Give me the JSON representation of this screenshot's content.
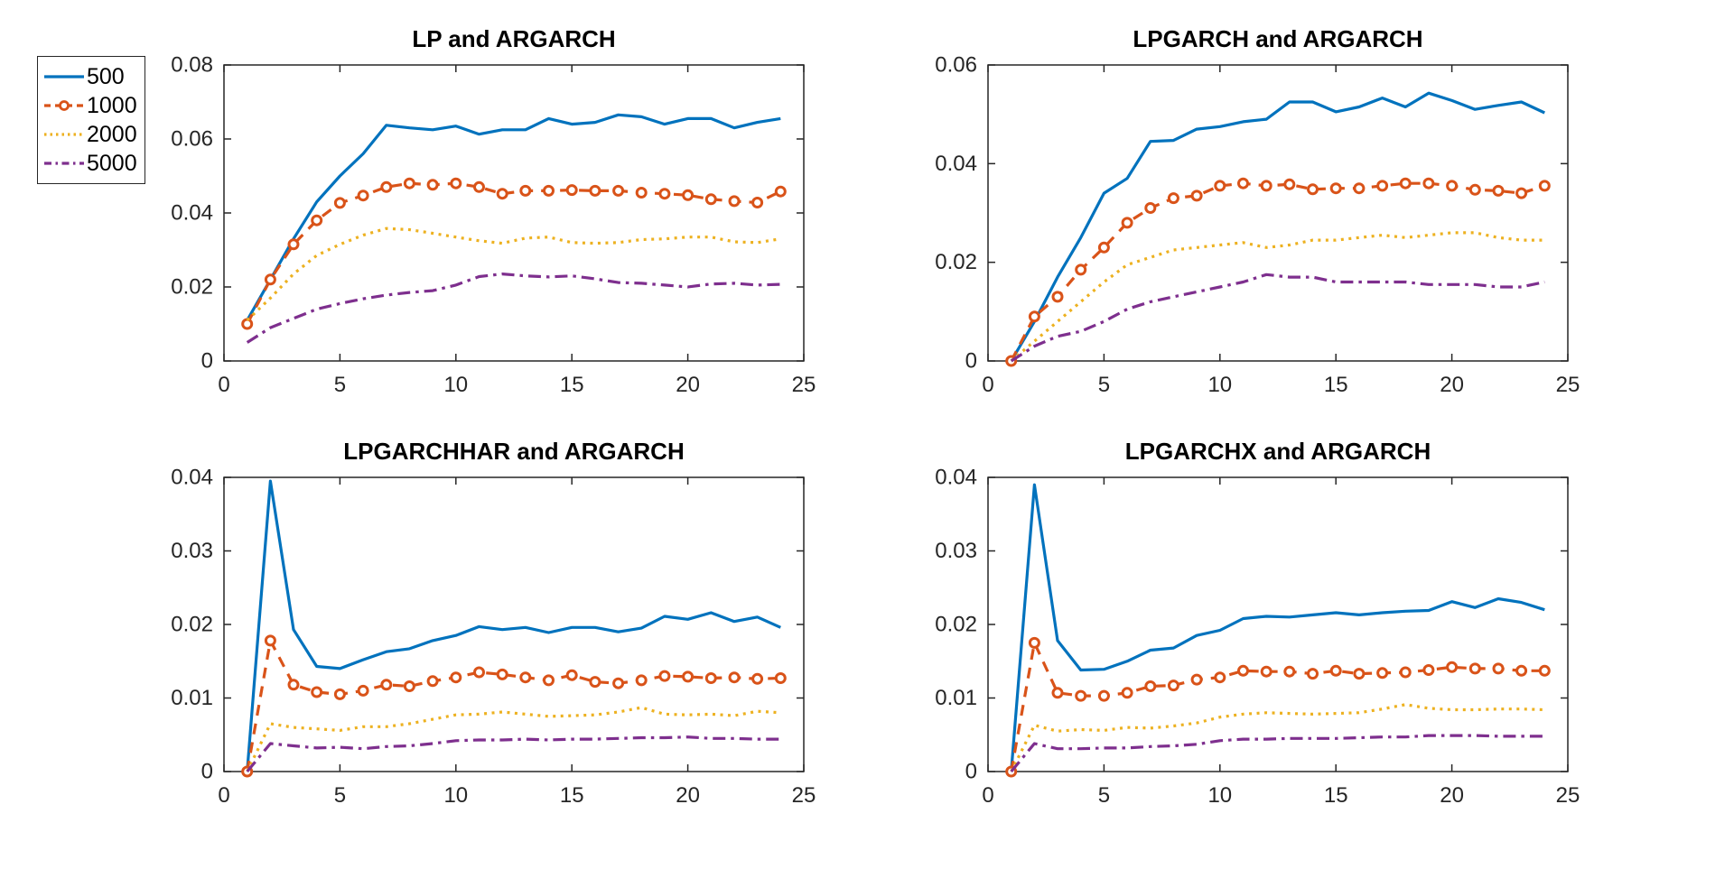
{
  "style": {
    "background": "#FFFFFF",
    "axis_color": "#262626",
    "title_color": "#000000",
    "series_colors": {
      "blue": "#0072BD",
      "orange": "#D95319",
      "yellow": "#EDB120",
      "purple": "#7E2F8E"
    }
  },
  "legend": {
    "position": "outside-top-left",
    "items": [
      {
        "label": "500",
        "color": "#0072BD",
        "line_style": "solid",
        "marker": "none"
      },
      {
        "label": "1000",
        "color": "#D95319",
        "line_style": "dashed",
        "marker": "circle"
      },
      {
        "label": "2000",
        "color": "#EDB120",
        "line_style": "dotted",
        "marker": "none"
      },
      {
        "label": "5000",
        "color": "#7E2F8E",
        "line_style": "dashdot",
        "marker": "none"
      }
    ]
  },
  "chart_data": [
    {
      "type": "line",
      "title": "LP and ARGARCH",
      "xlim": [
        0,
        25
      ],
      "ylim": [
        0,
        0.08
      ],
      "xticks": [
        "0",
        "5",
        "10",
        "15",
        "20",
        "25"
      ],
      "yticks": [
        "0",
        "0.02",
        "0.04",
        "0.06",
        "0.08"
      ],
      "grid": false,
      "x": [
        1,
        2,
        3,
        4,
        5,
        6,
        7,
        8,
        9,
        10,
        11,
        12,
        13,
        14,
        15,
        16,
        17,
        18,
        19,
        20,
        21,
        22,
        23,
        24
      ],
      "series": [
        {
          "name": "500",
          "color": "#0072BD",
          "line_style": "solid",
          "marker": "none",
          "values": [
            0.011,
            0.022,
            0.033,
            0.043,
            0.05,
            0.056,
            0.0637,
            0.063,
            0.0625,
            0.0635,
            0.0613,
            0.0625,
            0.0625,
            0.0655,
            0.064,
            0.0645,
            0.0665,
            0.066,
            0.064,
            0.0655,
            0.0655,
            0.063,
            0.0645,
            0.0655
          ]
        },
        {
          "name": "1000",
          "color": "#D95319",
          "line_style": "dashed",
          "marker": "circle",
          "values": [
            0.01,
            0.022,
            0.0315,
            0.038,
            0.0427,
            0.0447,
            0.047,
            0.048,
            0.0476,
            0.048,
            0.047,
            0.0452,
            0.046,
            0.046,
            0.0462,
            0.046,
            0.046,
            0.0455,
            0.0452,
            0.0448,
            0.0437,
            0.0432,
            0.0428,
            0.0458
          ]
        },
        {
          "name": "2000",
          "color": "#EDB120",
          "line_style": "dotted",
          "marker": "none",
          "values": [
            0.011,
            0.017,
            0.0235,
            0.0285,
            0.0315,
            0.034,
            0.0358,
            0.0355,
            0.0345,
            0.0335,
            0.0325,
            0.0318,
            0.0332,
            0.0335,
            0.032,
            0.0318,
            0.032,
            0.0328,
            0.033,
            0.0335,
            0.0335,
            0.0322,
            0.032,
            0.033
          ]
        },
        {
          "name": "5000",
          "color": "#7E2F8E",
          "line_style": "dashdot",
          "marker": "none",
          "values": [
            0.005,
            0.009,
            0.0115,
            0.014,
            0.0155,
            0.0168,
            0.0178,
            0.0185,
            0.019,
            0.0205,
            0.0228,
            0.0235,
            0.023,
            0.0227,
            0.023,
            0.0222,
            0.0212,
            0.021,
            0.0205,
            0.02,
            0.0208,
            0.021,
            0.0205,
            0.0207
          ]
        }
      ]
    },
    {
      "type": "line",
      "title": "LPGARCH and ARGARCH",
      "xlim": [
        0,
        25
      ],
      "ylim": [
        0,
        0.06
      ],
      "xticks": [
        "0",
        "5",
        "10",
        "15",
        "20",
        "25"
      ],
      "yticks": [
        "0",
        "0.02",
        "0.04",
        "0.06"
      ],
      "grid": false,
      "x": [
        1,
        2,
        3,
        4,
        5,
        6,
        7,
        8,
        9,
        10,
        11,
        12,
        13,
        14,
        15,
        16,
        17,
        18,
        19,
        20,
        21,
        22,
        23,
        24
      ],
      "series": [
        {
          "name": "500",
          "color": "#0072BD",
          "line_style": "solid",
          "marker": "none",
          "values": [
            0.0,
            0.008,
            0.017,
            0.025,
            0.034,
            0.037,
            0.0445,
            0.0447,
            0.047,
            0.0475,
            0.0485,
            0.049,
            0.0525,
            0.0525,
            0.0505,
            0.0515,
            0.0533,
            0.0515,
            0.0543,
            0.0528,
            0.051,
            0.0518,
            0.0525,
            0.0503
          ]
        },
        {
          "name": "1000",
          "color": "#D95319",
          "line_style": "dashed",
          "marker": "circle",
          "values": [
            0.0,
            0.009,
            0.013,
            0.0185,
            0.023,
            0.028,
            0.031,
            0.033,
            0.0335,
            0.0355,
            0.036,
            0.0355,
            0.0358,
            0.0348,
            0.035,
            0.035,
            0.0355,
            0.036,
            0.036,
            0.0355,
            0.0347,
            0.0345,
            0.034,
            0.0355
          ]
        },
        {
          "name": "2000",
          "color": "#EDB120",
          "line_style": "dotted",
          "marker": "none",
          "values": [
            0.0,
            0.004,
            0.008,
            0.012,
            0.016,
            0.0195,
            0.021,
            0.0225,
            0.023,
            0.0235,
            0.024,
            0.023,
            0.0235,
            0.0245,
            0.0245,
            0.025,
            0.0255,
            0.025,
            0.0255,
            0.026,
            0.026,
            0.025,
            0.0245,
            0.0245
          ]
        },
        {
          "name": "5000",
          "color": "#7E2F8E",
          "line_style": "dashdot",
          "marker": "none",
          "values": [
            0.0,
            0.003,
            0.005,
            0.006,
            0.008,
            0.0105,
            0.012,
            0.013,
            0.014,
            0.015,
            0.016,
            0.0175,
            0.017,
            0.017,
            0.016,
            0.016,
            0.016,
            0.016,
            0.0155,
            0.0155,
            0.0155,
            0.015,
            0.015,
            0.016
          ]
        }
      ]
    },
    {
      "type": "line",
      "title": "LPGARCHHAR and ARGARCH",
      "xlim": [
        0,
        25
      ],
      "ylim": [
        0,
        0.04
      ],
      "xticks": [
        "0",
        "5",
        "10",
        "15",
        "20",
        "25"
      ],
      "yticks": [
        "0",
        "0.01",
        "0.02",
        "0.03",
        "0.04"
      ],
      "grid": false,
      "x": [
        1,
        2,
        3,
        4,
        5,
        6,
        7,
        8,
        9,
        10,
        11,
        12,
        13,
        14,
        15,
        16,
        17,
        18,
        19,
        20,
        21,
        22,
        23,
        24
      ],
      "series": [
        {
          "name": "500",
          "color": "#0072BD",
          "line_style": "solid",
          "marker": "none",
          "values": [
            0.0,
            0.0395,
            0.0193,
            0.0143,
            0.014,
            0.0152,
            0.0163,
            0.0167,
            0.0178,
            0.0185,
            0.0197,
            0.0193,
            0.0196,
            0.0189,
            0.0196,
            0.0196,
            0.019,
            0.0195,
            0.0211,
            0.0207,
            0.0216,
            0.0204,
            0.021,
            0.0196
          ]
        },
        {
          "name": "1000",
          "color": "#D95319",
          "line_style": "dashed",
          "marker": "circle",
          "values": [
            0.0,
            0.0178,
            0.0118,
            0.0108,
            0.0105,
            0.011,
            0.0118,
            0.0116,
            0.0123,
            0.0128,
            0.0135,
            0.0132,
            0.0128,
            0.0124,
            0.0131,
            0.0122,
            0.012,
            0.0124,
            0.013,
            0.0129,
            0.0127,
            0.0128,
            0.0126,
            0.0127
          ]
        },
        {
          "name": "2000",
          "color": "#EDB120",
          "line_style": "dotted",
          "marker": "none",
          "values": [
            0.0,
            0.0065,
            0.006,
            0.0058,
            0.0056,
            0.0061,
            0.0061,
            0.0065,
            0.0071,
            0.0077,
            0.0078,
            0.0081,
            0.0078,
            0.0075,
            0.0076,
            0.0077,
            0.0081,
            0.0087,
            0.0078,
            0.0077,
            0.0078,
            0.0076,
            0.0082,
            0.008
          ]
        },
        {
          "name": "5000",
          "color": "#7E2F8E",
          "line_style": "dashdot",
          "marker": "none",
          "values": [
            0.0,
            0.0038,
            0.0035,
            0.0032,
            0.0033,
            0.0031,
            0.0034,
            0.0035,
            0.0038,
            0.0042,
            0.0043,
            0.0043,
            0.0044,
            0.0043,
            0.0044,
            0.0044,
            0.0045,
            0.0046,
            0.0046,
            0.0047,
            0.0045,
            0.0045,
            0.0044,
            0.0044
          ]
        }
      ]
    },
    {
      "type": "line",
      "title": "LPGARCHX and ARGARCH",
      "xlim": [
        0,
        25
      ],
      "ylim": [
        0,
        0.04
      ],
      "xticks": [
        "0",
        "5",
        "10",
        "15",
        "20",
        "25"
      ],
      "yticks": [
        "0",
        "0.01",
        "0.02",
        "0.03",
        "0.04"
      ],
      "grid": false,
      "x": [
        1,
        2,
        3,
        4,
        5,
        6,
        7,
        8,
        9,
        10,
        11,
        12,
        13,
        14,
        15,
        16,
        17,
        18,
        19,
        20,
        21,
        22,
        23,
        24
      ],
      "series": [
        {
          "name": "500",
          "color": "#0072BD",
          "line_style": "solid",
          "marker": "none",
          "values": [
            0.0,
            0.039,
            0.0178,
            0.0138,
            0.0139,
            0.015,
            0.0165,
            0.0168,
            0.0185,
            0.0192,
            0.0208,
            0.0211,
            0.021,
            0.0213,
            0.0216,
            0.0213,
            0.0216,
            0.0218,
            0.0219,
            0.0231,
            0.0223,
            0.0235,
            0.023,
            0.022
          ]
        },
        {
          "name": "1000",
          "color": "#D95319",
          "line_style": "dashed",
          "marker": "circle",
          "values": [
            0.0,
            0.0175,
            0.0107,
            0.0103,
            0.0103,
            0.0107,
            0.0116,
            0.0117,
            0.0125,
            0.0128,
            0.0137,
            0.0136,
            0.0136,
            0.0133,
            0.0137,
            0.0133,
            0.0134,
            0.0135,
            0.0138,
            0.0142,
            0.014,
            0.014,
            0.0137,
            0.0137
          ]
        },
        {
          "name": "2000",
          "color": "#EDB120",
          "line_style": "dotted",
          "marker": "none",
          "values": [
            0.0,
            0.0063,
            0.0055,
            0.0057,
            0.0056,
            0.006,
            0.0059,
            0.0062,
            0.0066,
            0.0074,
            0.0078,
            0.008,
            0.0079,
            0.0078,
            0.0079,
            0.008,
            0.0085,
            0.0091,
            0.0086,
            0.0084,
            0.0084,
            0.0085,
            0.0085,
            0.0084
          ]
        },
        {
          "name": "5000",
          "color": "#7E2F8E",
          "line_style": "dashdot",
          "marker": "none",
          "values": [
            0.0,
            0.0038,
            0.0031,
            0.0031,
            0.0032,
            0.0032,
            0.0034,
            0.0035,
            0.0037,
            0.0042,
            0.0044,
            0.0044,
            0.0045,
            0.0045,
            0.0045,
            0.0046,
            0.0047,
            0.0047,
            0.0049,
            0.0049,
            0.0049,
            0.0048,
            0.0048,
            0.0048
          ]
        }
      ]
    }
  ]
}
